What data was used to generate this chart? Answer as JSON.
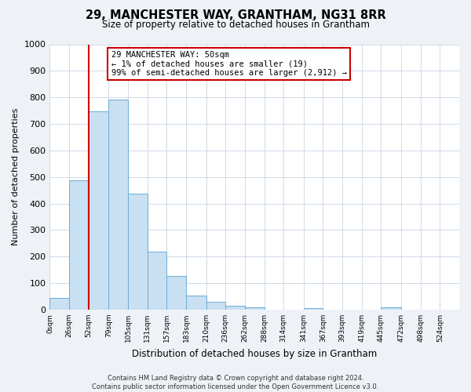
{
  "title": "29, MANCHESTER WAY, GRANTHAM, NG31 8RR",
  "subtitle": "Size of property relative to detached houses in Grantham",
  "xlabel": "Distribution of detached houses by size in Grantham",
  "ylabel": "Number of detached properties",
  "bar_values": [
    44,
    487,
    748,
    792,
    436,
    219,
    127,
    52,
    28,
    15,
    10,
    0,
    0,
    5,
    0,
    0,
    0,
    8,
    0,
    0,
    0
  ],
  "bin_edges": [
    0,
    26,
    52,
    79,
    105,
    131,
    157,
    183,
    210,
    236,
    262,
    288,
    314,
    341,
    367,
    393,
    419,
    445,
    472,
    498,
    524,
    550
  ],
  "tick_labels": [
    "0sqm",
    "26sqm",
    "52sqm",
    "79sqm",
    "105sqm",
    "131sqm",
    "157sqm",
    "183sqm",
    "210sqm",
    "236sqm",
    "262sqm",
    "288sqm",
    "314sqm",
    "341sqm",
    "367sqm",
    "393sqm",
    "419sqm",
    "445sqm",
    "472sqm",
    "498sqm",
    "524sqm"
  ],
  "bar_facecolor": "#c9dff2",
  "bar_edgecolor": "#6aaed6",
  "ylim": [
    0,
    1000
  ],
  "yticks": [
    0,
    100,
    200,
    300,
    400,
    500,
    600,
    700,
    800,
    900,
    1000
  ],
  "xlim": [
    0,
    550
  ],
  "property_line_x": 52,
  "property_line_color": "#cc0000",
  "annotation_text": "29 MANCHESTER WAY: 50sqm\n← 1% of detached houses are smaller (19)\n99% of semi-detached houses are larger (2,912) →",
  "annotation_box_color": "#cc0000",
  "footer_line1": "Contains HM Land Registry data © Crown copyright and database right 2024.",
  "footer_line2": "Contains public sector information licensed under the Open Government Licence v3.0.",
  "bg_color": "#eef2f7",
  "plot_bg_color": "#ffffff",
  "grid_color": "#d0dae8"
}
